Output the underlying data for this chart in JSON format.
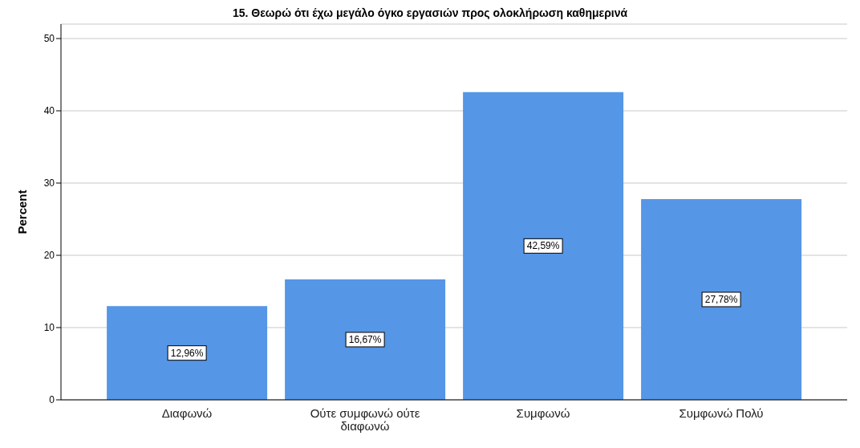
{
  "chart_data": {
    "type": "bar",
    "title": "15. Θεωρώ ότι έχω μεγάλο όγκο εργασιών προς ολοκλήρωση καθημερινά",
    "ylabel": "Percent",
    "categories": [
      "Διαφωνώ",
      "Ούτε συμφωνώ ούτε διαφωνώ",
      "Συμφωνώ",
      "Συμφωνώ Πολύ"
    ],
    "values": [
      12.96,
      16.67,
      42.59,
      27.78
    ],
    "value_labels": [
      "12,96%",
      "16,67%",
      "42,59%",
      "27,78%"
    ],
    "color": "#5596e6",
    "ylim": [
      0,
      52
    ],
    "yticks": [
      0,
      10,
      20,
      30,
      40,
      50
    ],
    "grid": "y"
  }
}
